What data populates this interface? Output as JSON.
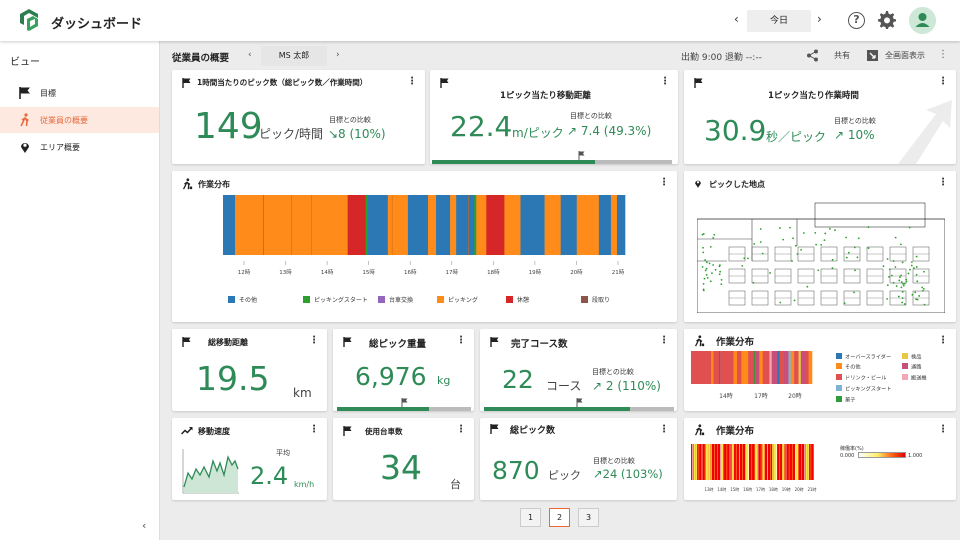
{
  "app": {
    "title": "ダッシュボード"
  },
  "header": {
    "date_label": "今日",
    "prev": "‹",
    "next": "›",
    "help": "?"
  },
  "sidebar": {
    "view_label": "ビュー",
    "items": [
      {
        "label": "目標"
      },
      {
        "label": "従業員の概要"
      },
      {
        "label": "エリア概要"
      }
    ],
    "collapse": "‹"
  },
  "subheader": {
    "title": "従業員の概要",
    "employee": "MS 太郎",
    "prev": "‹",
    "next": "›",
    "worktime": "出勤 9:00  退勤 --:--",
    "share": "共有",
    "fullscreen": "全画面表示"
  },
  "cards": {
    "picks_per_hour": {
      "title": "1時間当たりのピック数（総ピック数／作業時間）",
      "value": "149",
      "unit": "ピック/時間",
      "compare_label": "目標との比較",
      "delta": "↘8 (10%)"
    },
    "move_distance": {
      "title": "1ピック当たり移動距離",
      "value": "22.4",
      "unit": "m/ピック",
      "compare_label": "目標との比較",
      "delta": "↗ 7.4 (49.3%)",
      "progress": 0.68
    },
    "work_time": {
      "title": "1ピック当たり作業時間",
      "value": "30.9",
      "unit": "秒／ピック",
      "compare_label": "目標との比較",
      "delta": "↗ 10%"
    },
    "work_distribution": {
      "title": "作業分布"
    },
    "pick_locations": {
      "title": "ピックした地点"
    },
    "total_distance": {
      "title": "総移動距離",
      "value": "19.5",
      "unit": "km"
    },
    "total_weight": {
      "title": "総ピック重量",
      "value": "6,976",
      "unit": "kg",
      "progress": 0.69
    },
    "completed_courses": {
      "title": "完了コース数",
      "value": "22",
      "unit": "コース",
      "compare_label": "目標との比較",
      "delta": "↗ 2 (110%)",
      "progress": 0.77
    },
    "work_distribution2": {
      "title": "作業分布"
    },
    "speed": {
      "title": "移動速度",
      "avg_label": "平均",
      "value": "2.4",
      "unit": "km/h"
    },
    "vehicles": {
      "title": "使用台車数",
      "value": "34",
      "unit": "台"
    },
    "total_picks": {
      "title": "総ピック数",
      "value": "870",
      "unit": "ピック",
      "compare_label": "目標との比較",
      "delta": "↗24 (103%)"
    },
    "work_distribution3": {
      "title": "作業分布",
      "scale_label": "稼働率(%)",
      "scale_min": "0.000",
      "scale_max": "1.000"
    }
  },
  "chart_data": [
    {
      "type": "bar",
      "title": "作業分布",
      "x_ticks": [
        "12時",
        "13時",
        "14時",
        "15時",
        "16時",
        "17時",
        "18時",
        "19時",
        "20時",
        "21時"
      ],
      "legend": [
        {
          "name": "その他",
          "color": "#2b78b5"
        },
        {
          "name": "ピッキングスタート",
          "color": "#2ca02c"
        },
        {
          "name": "台車交換",
          "color": "#9467bd"
        },
        {
          "name": "ピッキング",
          "color": "#ff8c1a"
        },
        {
          "name": "休憩",
          "color": "#d62728"
        },
        {
          "name": "段取り",
          "color": "#8c564b"
        }
      ]
    },
    {
      "type": "bar",
      "title": "作業分布",
      "x_ticks": [
        "14時",
        "17時",
        "20時"
      ],
      "legend": [
        {
          "name": "オーバースライダー",
          "color": "#2b78b5"
        },
        {
          "name": "検品",
          "color": "#e8c840"
        },
        {
          "name": "その他",
          "color": "#ff8c1a"
        },
        {
          "name": "通路",
          "color": "#c74f7a"
        },
        {
          "name": "ドリンク・ビール",
          "color": "#e05050"
        },
        {
          "name": "搬送機",
          "color": "#f4a6b5"
        },
        {
          "name": "ピッキングスタート",
          "color": "#7fb3d5"
        },
        {
          "name": "菓子",
          "color": "#2e9c3a"
        }
      ]
    },
    {
      "type": "heatmap",
      "title": "作業分布",
      "x_ticks": [
        "13時",
        "14時",
        "15時",
        "16時",
        "17時",
        "18時",
        "19時",
        "20時",
        "21時"
      ]
    }
  ],
  "pagination": {
    "pages": [
      "1",
      "2",
      "3"
    ],
    "current": "2"
  }
}
